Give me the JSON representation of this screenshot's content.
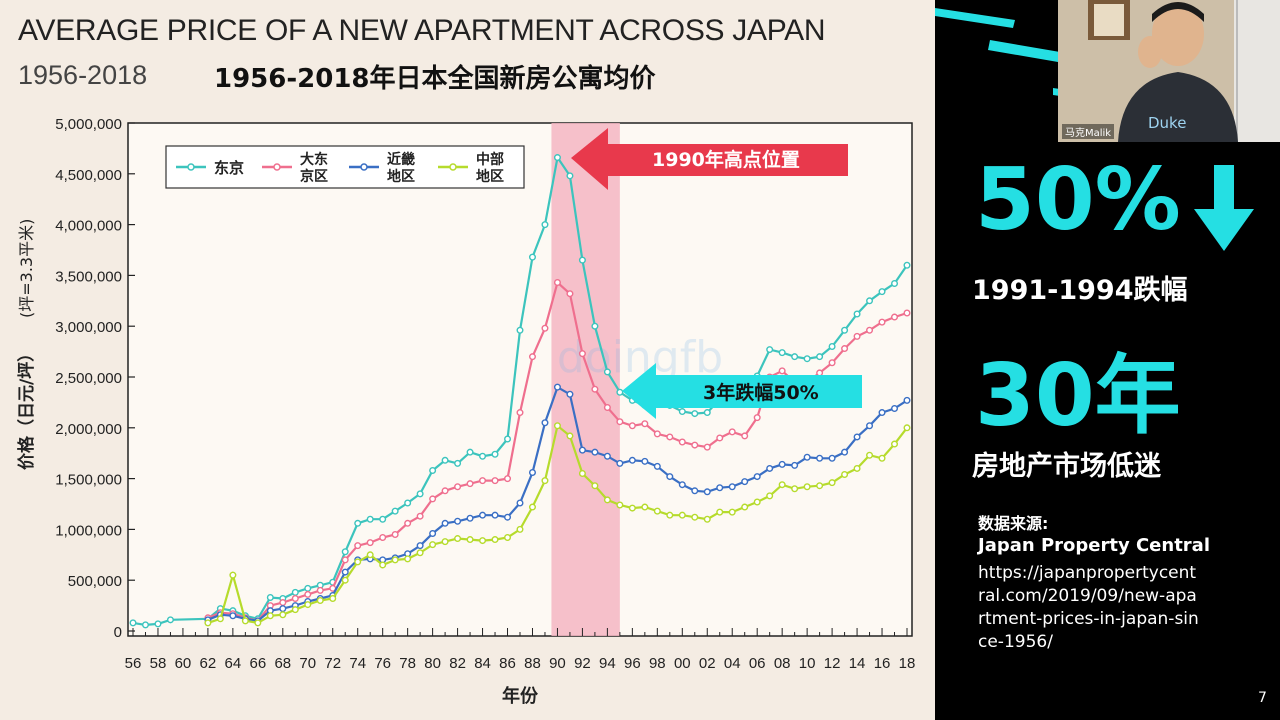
{
  "slide": {
    "title_en": "AVERAGE PRICE OF A NEW APARTMENT ACROSS JAPAN",
    "title_years": "1956-2018",
    "title_cn": "1956-2018年日本全国新房公寓均价",
    "page_number": "7",
    "watermark": "doingfb"
  },
  "right_panel": {
    "big_percent": "50%",
    "down_arrow_icon": "arrow-down-icon",
    "range_text": "1991-1994跌幅",
    "big_years": "30年",
    "market_text": "房地产市场低迷",
    "source_label": "数据来源:",
    "source_name": "Japan Property Central",
    "source_url": "https://japanpropertycentral.com/2019/09/new-apartment-prices-in-japan-since-1956/",
    "accent_color": "#25dfe3"
  },
  "webcam": {
    "name": "马克Malik",
    "shirt_text": "Duke"
  },
  "chart_data": {
    "type": "line",
    "title": "AVERAGE PRICE OF A NEW APARTMENT ACROSS JAPAN",
    "xlabel": "年份",
    "ylabel": "价格（日元/坪）",
    "ylabel_unit": "(坪=3.3平米)",
    "xlim": [
      1956,
      2018
    ],
    "ylim": [
      0,
      5000000
    ],
    "x_ticks": [
      "56",
      "58",
      "60",
      "62",
      "64",
      "66",
      "68",
      "70",
      "72",
      "74",
      "76",
      "78",
      "80",
      "82",
      "84",
      "86",
      "88",
      "90",
      "92",
      "94",
      "96",
      "98",
      "00",
      "02",
      "04",
      "06",
      "08",
      "10",
      "12",
      "14",
      "16",
      "18"
    ],
    "y_ticks": [
      "0",
      "500,000",
      "1,000,000",
      "1,500,000",
      "2,000,000",
      "2,500,000",
      "3,000,000",
      "3,500,000",
      "4,000,000",
      "4,500,000",
      "5,000,000"
    ],
    "grid": false,
    "legend_position": "top-left",
    "highlight_band": {
      "x_start": 1990,
      "x_end": 1995,
      "color": "#f4b6c2"
    },
    "annotations": [
      {
        "text": "1990年高点位置",
        "color": "#e8394c"
      },
      {
        "text": "3年跌幅50%",
        "color": "#25dfe3"
      }
    ],
    "series": [
      {
        "name": "东京",
        "color": "#3cc4bd",
        "x": [
          1956,
          1957,
          1958,
          1959,
          1962,
          1963,
          1964,
          1965,
          1966,
          1967,
          1968,
          1969,
          1970,
          1971,
          1972,
          1973,
          1974,
          1975,
          1976,
          1977,
          1978,
          1979,
          1980,
          1981,
          1982,
          1983,
          1984,
          1985,
          1986,
          1987,
          1988,
          1989,
          1990,
          1991,
          1992,
          1993,
          1994,
          1995,
          1996,
          1997,
          1998,
          1999,
          2000,
          2001,
          2002,
          2003,
          2004,
          2005,
          2006,
          2007,
          2008,
          2009,
          2010,
          2011,
          2012,
          2013,
          2014,
          2015,
          2016,
          2017,
          2018
        ],
        "y": [
          80000,
          60000,
          70000,
          110000,
          120000,
          220000,
          200000,
          150000,
          120000,
          330000,
          320000,
          380000,
          420000,
          450000,
          480000,
          780000,
          1060000,
          1100000,
          1100000,
          1180000,
          1260000,
          1350000,
          1580000,
          1680000,
          1650000,
          1760000,
          1720000,
          1740000,
          1890000,
          2960000,
          3680000,
          4000000,
          4660000,
          4480000,
          3650000,
          3000000,
          2550000,
          2350000,
          2270000,
          2220000,
          2250000,
          2220000,
          2160000,
          2140000,
          2150000,
          2280000,
          2350000,
          2400000,
          2510000,
          2770000,
          2740000,
          2700000,
          2680000,
          2700000,
          2800000,
          2960000,
          3120000,
          3250000,
          3340000,
          3420000,
          3600000
        ]
      },
      {
        "name": "大东京区",
        "color": "#ef6f8e",
        "x": [
          1962,
          1963,
          1964,
          1965,
          1966,
          1967,
          1968,
          1969,
          1970,
          1971,
          1972,
          1973,
          1974,
          1975,
          1976,
          1977,
          1978,
          1979,
          1980,
          1981,
          1982,
          1983,
          1984,
          1985,
          1986,
          1987,
          1988,
          1989,
          1990,
          1991,
          1992,
          1993,
          1994,
          1995,
          1996,
          1997,
          1998,
          1999,
          2000,
          2001,
          2002,
          2003,
          2004,
          2005,
          2006,
          2007,
          2008,
          2009,
          2010,
          2011,
          2012,
          2013,
          2014,
          2015,
          2016,
          2017,
          2018
        ],
        "y": [
          130000,
          180000,
          170000,
          130000,
          100000,
          250000,
          280000,
          320000,
          360000,
          400000,
          420000,
          700000,
          840000,
          870000,
          920000,
          950000,
          1060000,
          1130000,
          1300000,
          1380000,
          1420000,
          1450000,
          1480000,
          1480000,
          1500000,
          2150000,
          2700000,
          2980000,
          3430000,
          3320000,
          2730000,
          2380000,
          2200000,
          2060000,
          2020000,
          2040000,
          1940000,
          1910000,
          1860000,
          1830000,
          1810000,
          1900000,
          1960000,
          1920000,
          2100000,
          2500000,
          2560000,
          2450000,
          2450000,
          2540000,
          2640000,
          2780000,
          2900000,
          2960000,
          3040000,
          3090000,
          3130000
        ]
      },
      {
        "name": "近畿地区",
        "color": "#3a6fc4",
        "x": [
          1962,
          1963,
          1964,
          1965,
          1966,
          1967,
          1968,
          1969,
          1970,
          1971,
          1972,
          1973,
          1974,
          1975,
          1976,
          1977,
          1978,
          1979,
          1980,
          1981,
          1982,
          1983,
          1984,
          1985,
          1986,
          1987,
          1988,
          1989,
          1990,
          1991,
          1992,
          1993,
          1994,
          1995,
          1996,
          1997,
          1998,
          1999,
          2000,
          2001,
          2002,
          2003,
          2004,
          2005,
          2006,
          2007,
          2008,
          2009,
          2010,
          2011,
          2012,
          2013,
          2014,
          2015,
          2016,
          2017,
          2018
        ],
        "y": [
          110000,
          160000,
          150000,
          120000,
          100000,
          200000,
          220000,
          250000,
          290000,
          320000,
          350000,
          580000,
          700000,
          710000,
          700000,
          720000,
          760000,
          840000,
          960000,
          1060000,
          1080000,
          1110000,
          1140000,
          1140000,
          1120000,
          1260000,
          1560000,
          2050000,
          2400000,
          2330000,
          1780000,
          1760000,
          1720000,
          1650000,
          1680000,
          1670000,
          1620000,
          1520000,
          1440000,
          1380000,
          1370000,
          1410000,
          1420000,
          1470000,
          1520000,
          1600000,
          1640000,
          1630000,
          1710000,
          1700000,
          1700000,
          1760000,
          1910000,
          2020000,
          2150000,
          2190000,
          2270000
        ]
      },
      {
        "name": "中部地区",
        "color": "#b6db2c",
        "x": [
          1962,
          1963,
          1964,
          1965,
          1966,
          1967,
          1968,
          1969,
          1970,
          1971,
          1972,
          1973,
          1974,
          1975,
          1976,
          1977,
          1978,
          1979,
          1980,
          1981,
          1982,
          1983,
          1984,
          1985,
          1986,
          1987,
          1988,
          1989,
          1990,
          1991,
          1992,
          1993,
          1994,
          1995,
          1996,
          1997,
          1998,
          1999,
          2000,
          2001,
          2002,
          2003,
          2004,
          2005,
          2006,
          2007,
          2008,
          2009,
          2010,
          2011,
          2012,
          2013,
          2014,
          2015,
          2016,
          2017,
          2018
        ],
        "y": [
          80000,
          120000,
          550000,
          100000,
          80000,
          150000,
          160000,
          210000,
          260000,
          300000,
          320000,
          500000,
          680000,
          750000,
          650000,
          700000,
          710000,
          770000,
          850000,
          880000,
          910000,
          900000,
          890000,
          900000,
          920000,
          1000000,
          1220000,
          1480000,
          2020000,
          1920000,
          1550000,
          1430000,
          1290000,
          1240000,
          1210000,
          1220000,
          1180000,
          1140000,
          1140000,
          1120000,
          1100000,
          1170000,
          1170000,
          1220000,
          1270000,
          1330000,
          1440000,
          1400000,
          1420000,
          1430000,
          1460000,
          1540000,
          1600000,
          1730000,
          1700000,
          1840000,
          2000000
        ]
      }
    ]
  }
}
